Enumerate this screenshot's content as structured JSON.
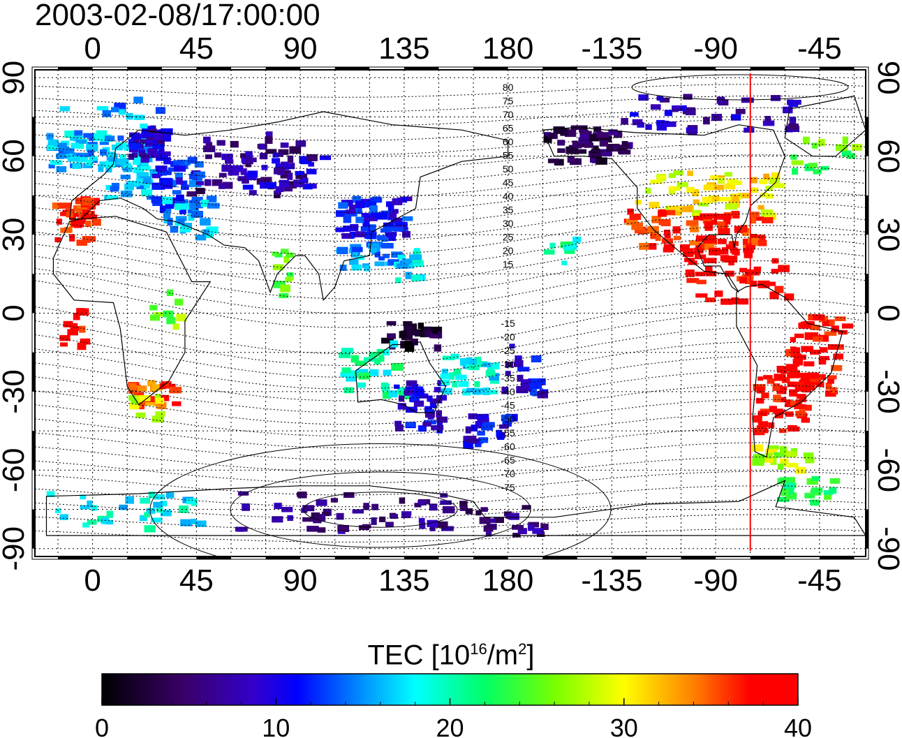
{
  "title": "2003-02-08/17:00:00",
  "map": {
    "top_lon_ticks": [
      "0",
      "45",
      "90",
      "135",
      "180",
      "-135",
      "-90",
      "-45"
    ],
    "bottom_lon_ticks": [
      "0",
      "45",
      "90",
      "135",
      "180",
      "-135",
      "-90",
      "-45"
    ],
    "left_lat_ticks": [
      "90",
      "60",
      "30",
      "0",
      "-30",
      "-60",
      "-90"
    ],
    "right_lat_ticks": [
      "90",
      "60",
      "30",
      "0",
      "-30",
      "-60",
      "-90"
    ],
    "lon_tick_values": [
      0,
      45,
      90,
      135,
      180,
      225,
      270,
      315
    ],
    "lat_tick_values": [
      90,
      60,
      30,
      0,
      -30,
      -60,
      -90
    ],
    "lon_range": [
      -25,
      335
    ],
    "lat_range": [
      -93,
      93
    ],
    "contour_labels_north": [
      "80",
      "75",
      "70",
      "65",
      "60",
      "55",
      "50",
      "45",
      "40",
      "35",
      "30",
      "25",
      "20",
      "15"
    ],
    "contour_labels_south": [
      "-15",
      "-20",
      "-25",
      "-30",
      "-35",
      "-40",
      "-45",
      "-50",
      "-55",
      "-60",
      "-65",
      "-70",
      "-75"
    ],
    "terminator_longitude": 285
  },
  "colorbar": {
    "title_main": "TEC  [10",
    "title_exp": "16",
    "title_mid": "/m",
    "title_exp2": "2",
    "title_end": "]",
    "ticks": [
      "0",
      "10",
      "20",
      "30",
      "40"
    ],
    "min": 0,
    "max": 40
  },
  "colors": {
    "terminator": "#ff0000"
  }
}
